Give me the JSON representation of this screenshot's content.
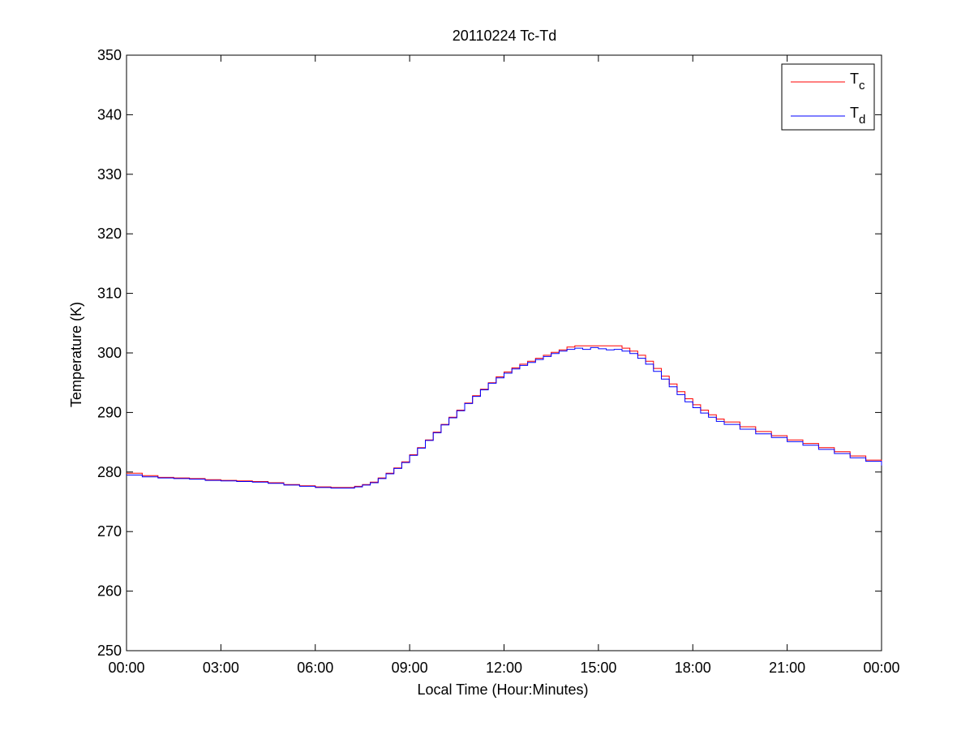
{
  "chart_data": {
    "type": "line",
    "title": "20110224 Tc-Td",
    "xlabel": "Local Time (Hour:Minutes)",
    "ylabel": "Temperature (K)",
    "xlim": [
      0,
      24
    ],
    "ylim": [
      250,
      350
    ],
    "x_ticks": [
      0,
      3,
      6,
      9,
      12,
      15,
      18,
      21,
      24
    ],
    "x_tick_labels": [
      "00:00",
      "03:00",
      "06:00",
      "09:00",
      "12:00",
      "15:00",
      "18:00",
      "21:00",
      "00:00"
    ],
    "y_ticks": [
      250,
      260,
      270,
      280,
      290,
      300,
      310,
      320,
      330,
      340,
      350
    ],
    "y_tick_labels": [
      "250",
      "260",
      "270",
      "280",
      "290",
      "300",
      "310",
      "320",
      "330",
      "340",
      "350"
    ],
    "legend_position": "top-right",
    "grid": false,
    "series": [
      {
        "name": "T",
        "subscript": "c",
        "color": "#ff0000",
        "x": [
          0,
          0.5,
          1,
          1.5,
          2,
          2.5,
          3,
          3.5,
          4,
          4.5,
          5,
          5.5,
          6,
          6.5,
          7,
          7.25,
          7.5,
          7.75,
          8,
          8.25,
          8.5,
          8.75,
          9,
          9.25,
          9.5,
          9.75,
          10,
          10.25,
          10.5,
          10.75,
          11,
          11.25,
          11.5,
          11.75,
          12,
          12.25,
          12.5,
          12.75,
          13,
          13.25,
          13.5,
          13.75,
          14,
          14.25,
          14.5,
          14.75,
          15,
          15.25,
          15.5,
          15.75,
          16,
          16.25,
          16.5,
          16.75,
          17,
          17.25,
          17.5,
          17.75,
          18,
          18.25,
          18.5,
          18.75,
          19,
          19.5,
          20,
          20.5,
          21,
          21.5,
          22,
          22.5,
          23,
          23.5,
          24
        ],
        "values": [
          279.8,
          279.4,
          279.1,
          279.0,
          278.9,
          278.7,
          278.6,
          278.5,
          278.4,
          278.2,
          277.9,
          277.7,
          277.5,
          277.4,
          277.4,
          277.6,
          277.9,
          278.3,
          279.0,
          279.8,
          280.7,
          281.7,
          282.9,
          284.1,
          285.4,
          286.7,
          288.0,
          289.2,
          290.4,
          291.6,
          292.8,
          293.9,
          295.0,
          296.0,
          296.8,
          297.5,
          298.1,
          298.6,
          299.1,
          299.6,
          300.1,
          300.5,
          301.0,
          301.2,
          301.2,
          301.2,
          301.2,
          301.2,
          301.2,
          300.8,
          300.3,
          299.6,
          298.6,
          297.4,
          296.1,
          294.8,
          293.5,
          292.3,
          291.3,
          290.4,
          289.6,
          288.9,
          288.4,
          287.6,
          286.8,
          286.1,
          285.4,
          284.8,
          284.1,
          283.4,
          282.7,
          282.0,
          281.3
        ]
      },
      {
        "name": "T",
        "subscript": "d",
        "color": "#0000ff",
        "x": [
          0,
          0.5,
          1,
          1.5,
          2,
          2.5,
          3,
          3.5,
          4,
          4.5,
          5,
          5.5,
          6,
          6.5,
          7,
          7.25,
          7.5,
          7.75,
          8,
          8.25,
          8.5,
          8.75,
          9,
          9.25,
          9.5,
          9.75,
          10,
          10.25,
          10.5,
          10.75,
          11,
          11.25,
          11.5,
          11.75,
          12,
          12.25,
          12.5,
          12.75,
          13,
          13.25,
          13.5,
          13.75,
          14,
          14.25,
          14.5,
          14.75,
          15,
          15.25,
          15.5,
          15.75,
          16,
          16.25,
          16.5,
          16.75,
          17,
          17.25,
          17.5,
          17.75,
          18,
          18.25,
          18.5,
          18.75,
          19,
          19.5,
          20,
          20.5,
          21,
          21.5,
          22,
          22.5,
          23,
          23.5,
          24
        ],
        "values": [
          279.5,
          279.2,
          279.0,
          278.9,
          278.8,
          278.6,
          278.5,
          278.4,
          278.3,
          278.1,
          277.8,
          277.6,
          277.4,
          277.3,
          277.3,
          277.5,
          277.8,
          278.2,
          278.9,
          279.7,
          280.6,
          281.6,
          282.8,
          284.0,
          285.3,
          286.6,
          287.9,
          289.1,
          290.3,
          291.5,
          292.7,
          293.8,
          294.9,
          295.8,
          296.6,
          297.3,
          297.9,
          298.4,
          298.9,
          299.4,
          299.9,
          300.3,
          300.6,
          300.8,
          300.6,
          300.9,
          300.7,
          300.5,
          300.6,
          300.3,
          299.9,
          299.1,
          298.1,
          296.9,
          295.6,
          294.3,
          293.0,
          291.8,
          290.8,
          289.9,
          289.2,
          288.5,
          288.0,
          287.2,
          286.4,
          285.8,
          285.1,
          284.5,
          283.8,
          283.1,
          282.4,
          281.8,
          281.1
        ]
      }
    ]
  }
}
